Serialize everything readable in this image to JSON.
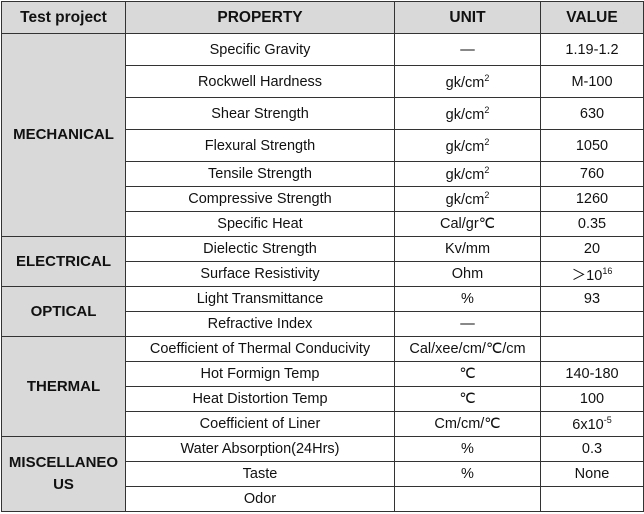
{
  "table": {
    "header": [
      "Test project",
      "PROPERTY",
      "UNIT",
      "VALUE"
    ],
    "groups": [
      {
        "name": "MECHANICAL",
        "rows": [
          {
            "property": "Specific Gravity",
            "unit": "—",
            "value": "1.19-1.2"
          },
          {
            "property": "Rockwell Hardness",
            "unit": {
              "text": "gk/cm",
              "sup": "2"
            },
            "value": "M-100"
          },
          {
            "property": "Shear Strength",
            "unit": {
              "text": "gk/cm",
              "sup": "2"
            },
            "value": "630"
          },
          {
            "property": "Flexural Strength",
            "unit": {
              "text": "gk/cm",
              "sup": "2"
            },
            "value": "1050"
          },
          {
            "property": "Tensile Strength",
            "unit": {
              "text": "gk/cm",
              "sup": "2"
            },
            "value": "760"
          },
          {
            "property": "Compressive Strength",
            "unit": {
              "text": "gk/cm",
              "sup": "2"
            },
            "value": "1260"
          },
          {
            "property": "Specific Heat",
            "unit": "Cal/gr℃",
            "value": "0.35"
          }
        ]
      },
      {
        "name": "ELECTRICAL",
        "rows": [
          {
            "property": "Dielectic Strength",
            "unit": "Kv/mm",
            "value": "20"
          },
          {
            "property": "Surface Resistivity",
            "unit": "Ohm",
            "value": {
              "text": "＞10",
              "sup": "16"
            }
          }
        ]
      },
      {
        "name": "OPTICAL",
        "rows": [
          {
            "property": "Light Transmittance",
            "unit": "%",
            "value": "93"
          },
          {
            "property": "Refractive Index",
            "unit": "—"
          }
        ]
      },
      {
        "name": "THERMAL",
        "rows": [
          {
            "property": "Coefficient of Thermal Conducivity",
            "unit": "Cal/xee/cm/℃/cm"
          },
          {
            "property": "Hot Formign Temp",
            "unit": "℃",
            "value": "140-180"
          },
          {
            "property": "Heat Distortion Temp",
            "unit": "℃",
            "value": "100"
          },
          {
            "property": "Coefficient of Liner",
            "unit": "Cm/cm/℃",
            "value": {
              "text": "6x10",
              "sup": "-5"
            }
          }
        ]
      },
      {
        "name": "MISCELLANEOUS",
        "rows": [
          {
            "property": "Water Absorption(24Hrs)",
            "unit": "%",
            "value": "0.3"
          },
          {
            "property": "Taste",
            "unit": "%",
            "value": "None"
          },
          {
            "property": "Odor"
          }
        ]
      }
    ]
  }
}
